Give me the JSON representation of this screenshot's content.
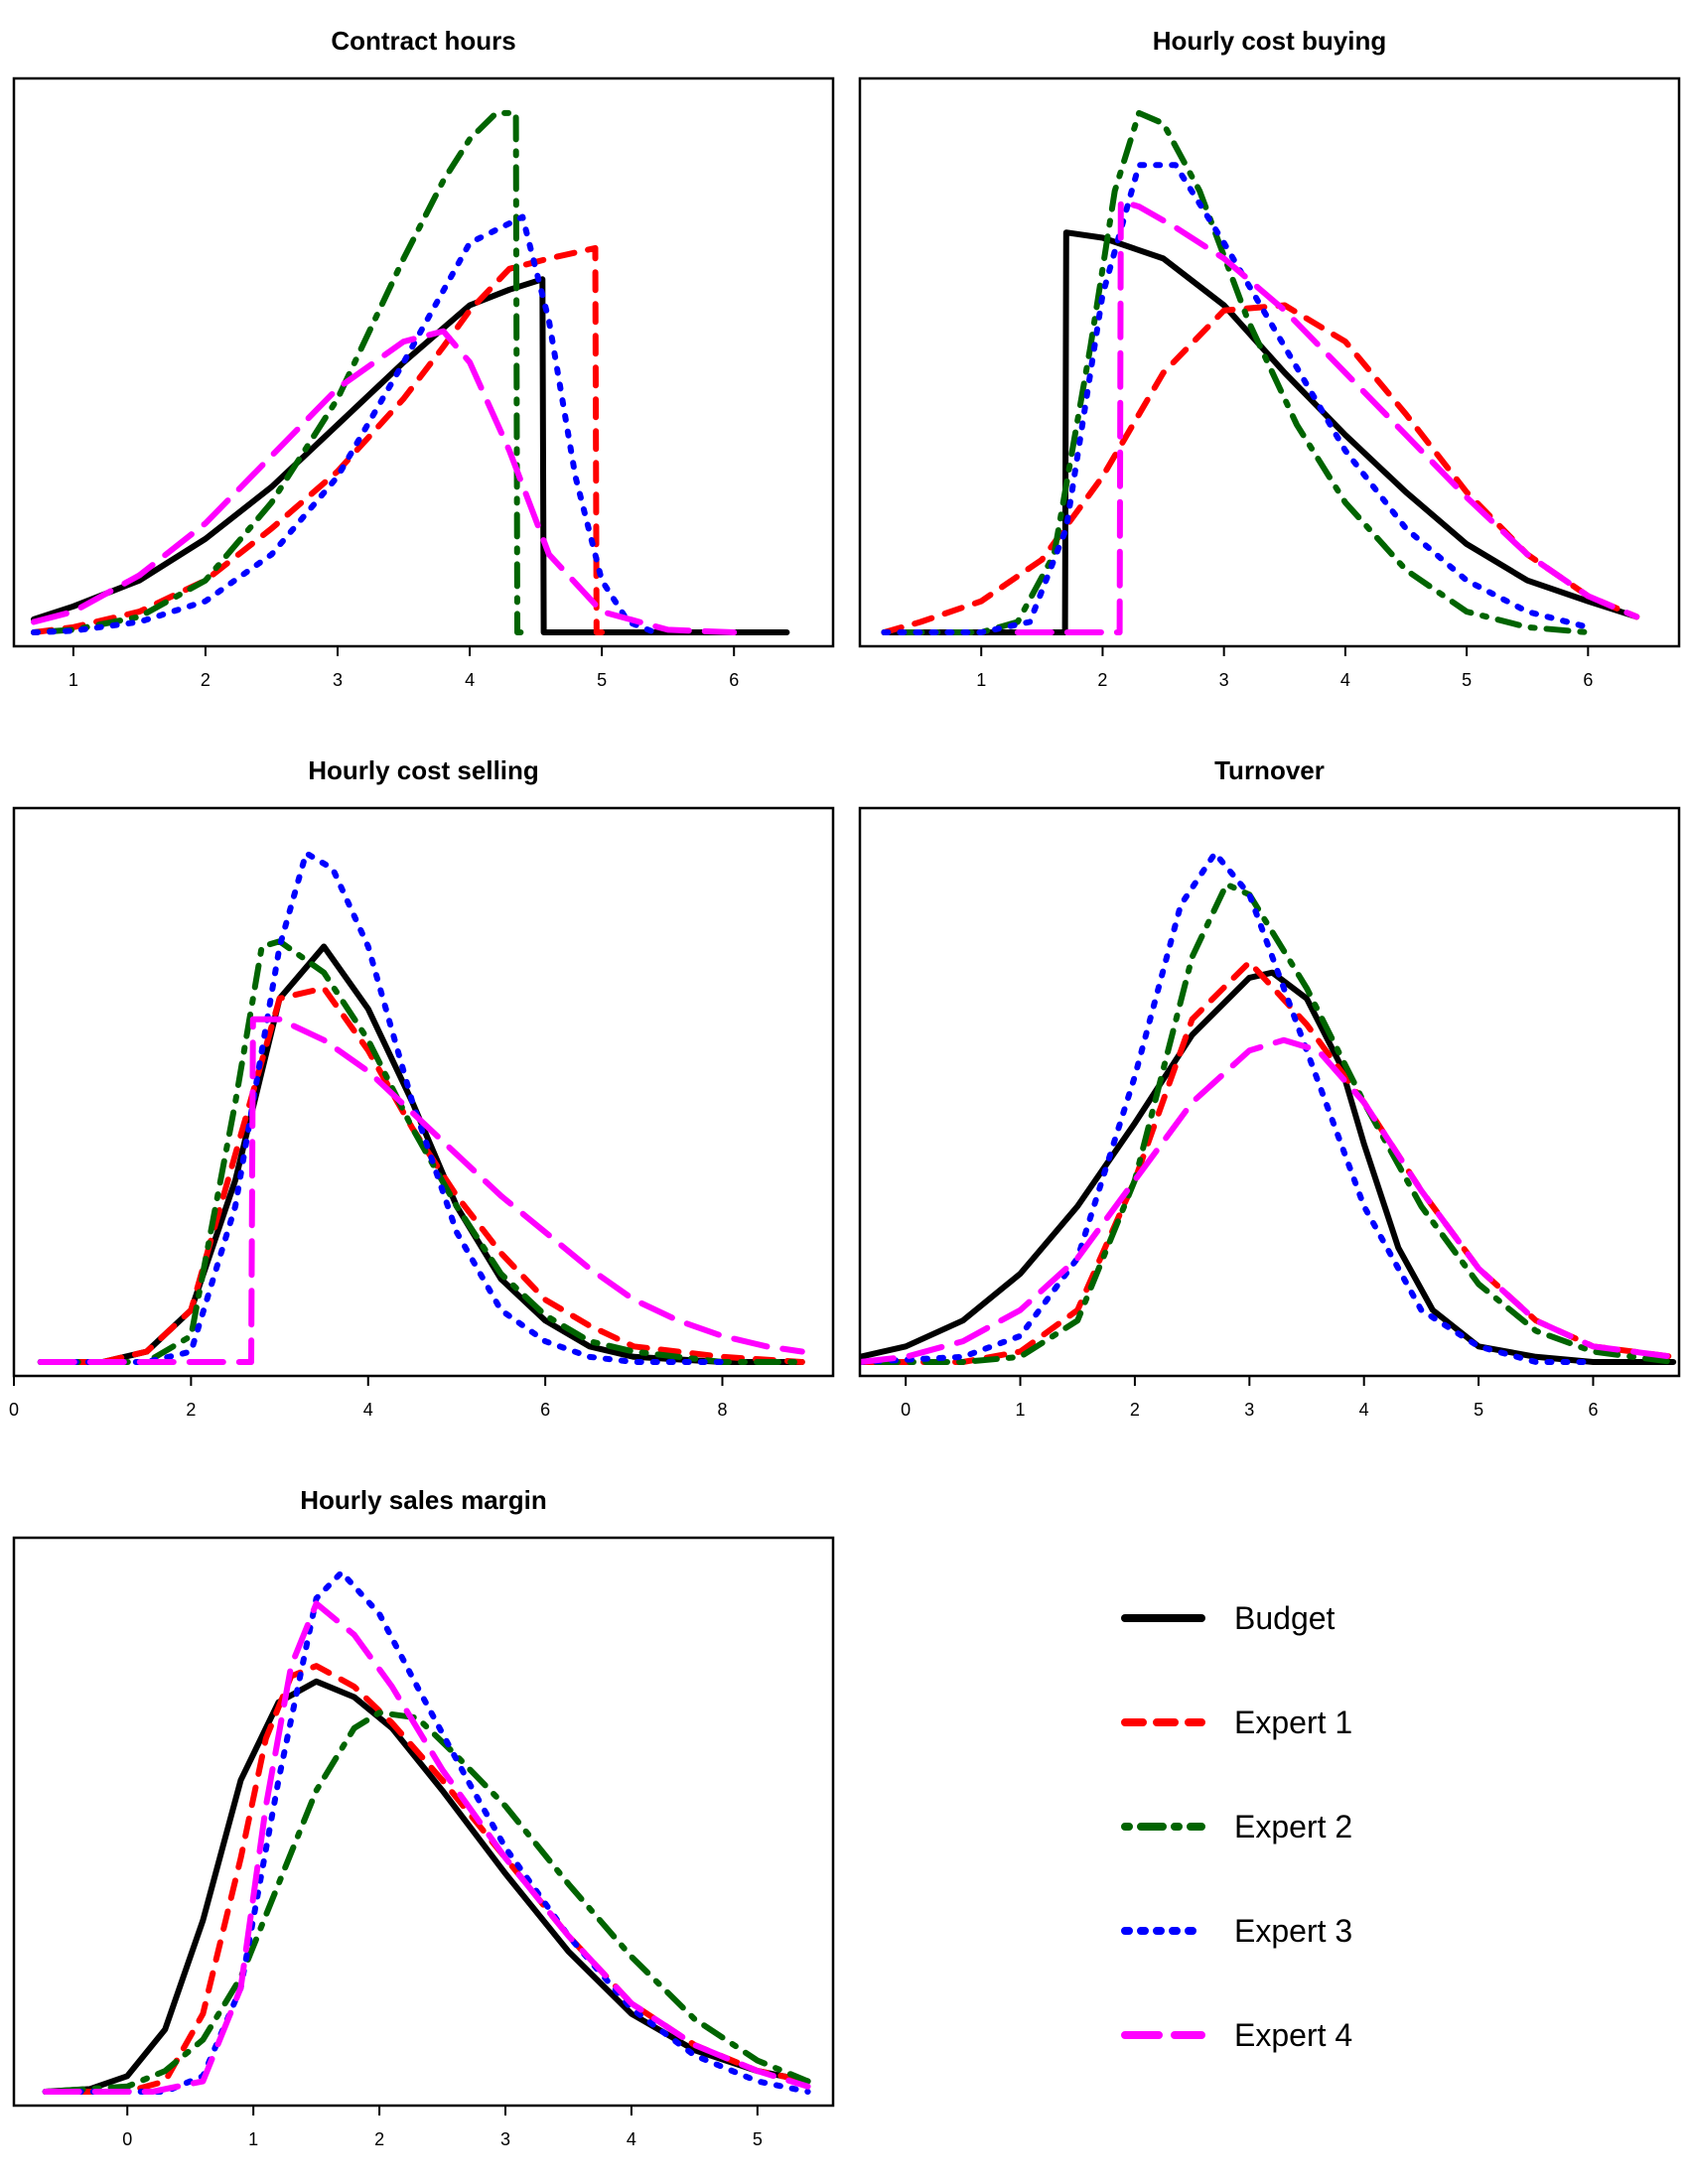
{
  "legend": [
    {
      "name": "Budget",
      "color": "#000000",
      "dash": "solid"
    },
    {
      "name": "Expert 1",
      "color": "#ff0000",
      "dash": "dashed"
    },
    {
      "name": "Expert 2",
      "color": "#006400",
      "dash": "dotdash"
    },
    {
      "name": "Expert 3",
      "color": "#0000ff",
      "dash": "dotted"
    },
    {
      "name": "Expert 4",
      "color": "#ff00ff",
      "dash": "longdash"
    }
  ],
  "chart_data": [
    {
      "type": "line",
      "title": "Contract hours",
      "xlabel": "",
      "ylabel": "",
      "xlim": [
        0.55,
        6.75
      ],
      "ylim": [
        0,
        1.04
      ],
      "xticks": [
        1,
        2,
        3,
        4,
        5,
        6
      ],
      "series": [
        {
          "name": "Budget",
          "x": [
            0.7,
            1.0,
            1.5,
            2.0,
            2.5,
            3.0,
            3.5,
            4.0,
            4.3,
            4.55,
            4.56,
            4.6,
            5.0,
            5.5,
            6.0,
            6.4
          ],
          "values": [
            0.025,
            0.05,
            0.1,
            0.18,
            0.28,
            0.4,
            0.52,
            0.63,
            0.66,
            0.68,
            0.0,
            0.0,
            0.0,
            0.0,
            0.0,
            0.0
          ]
        },
        {
          "name": "Expert 1",
          "x": [
            0.7,
            1.0,
            1.5,
            2.0,
            2.5,
            3.0,
            3.5,
            3.8,
            4.0,
            4.3,
            4.6,
            4.95,
            4.96,
            5.0
          ],
          "values": [
            0.0,
            0.01,
            0.04,
            0.1,
            0.2,
            0.31,
            0.45,
            0.55,
            0.62,
            0.7,
            0.72,
            0.74,
            0.0,
            0.0
          ]
        },
        {
          "name": "Expert 2",
          "x": [
            0.7,
            1.0,
            1.5,
            2.0,
            2.5,
            3.0,
            3.5,
            3.8,
            4.0,
            4.2,
            4.35,
            4.36,
            4.4
          ],
          "values": [
            0.0,
            0.005,
            0.03,
            0.1,
            0.25,
            0.45,
            0.72,
            0.87,
            0.95,
            1.0,
            1.0,
            0.0,
            0.0
          ]
        },
        {
          "name": "Expert 3",
          "x": [
            0.7,
            1.0,
            1.5,
            2.0,
            2.5,
            3.0,
            3.5,
            4.0,
            4.4,
            4.6,
            4.8,
            5.0,
            5.2,
            5.4
          ],
          "values": [
            0.0,
            0.003,
            0.02,
            0.06,
            0.15,
            0.3,
            0.52,
            0.75,
            0.8,
            0.6,
            0.3,
            0.1,
            0.02,
            0.0
          ]
        },
        {
          "name": "Expert 4",
          "x": [
            0.7,
            1.0,
            1.5,
            2.0,
            2.5,
            3.0,
            3.5,
            3.8,
            4.0,
            4.3,
            4.6,
            5.0,
            5.5,
            6.0
          ],
          "values": [
            0.02,
            0.04,
            0.11,
            0.21,
            0.34,
            0.47,
            0.56,
            0.58,
            0.52,
            0.35,
            0.15,
            0.04,
            0.005,
            0.0
          ]
        }
      ]
    },
    {
      "type": "line",
      "title": "Hourly cost buying",
      "xlabel": "",
      "ylabel": "",
      "xlim": [
        0.0,
        6.75
      ],
      "ylim": [
        0,
        1.04
      ],
      "xticks": [
        1,
        2,
        3,
        4,
        5,
        6
      ],
      "series": [
        {
          "name": "Budget",
          "x": [
            0.2,
            1.0,
            1.69,
            1.7,
            2.0,
            2.5,
            3.0,
            3.5,
            4.0,
            4.5,
            5.0,
            5.5,
            6.0,
            6.4
          ],
          "values": [
            0.0,
            0.0,
            0.0,
            0.77,
            0.76,
            0.72,
            0.63,
            0.5,
            0.38,
            0.27,
            0.17,
            0.1,
            0.06,
            0.03
          ]
        },
        {
          "name": "Expert 1",
          "x": [
            0.2,
            0.5,
            1.0,
            1.5,
            2.0,
            2.5,
            3.0,
            3.5,
            4.0,
            4.5,
            5.0,
            5.5,
            6.0,
            6.4
          ],
          "values": [
            0.0,
            0.02,
            0.06,
            0.14,
            0.3,
            0.5,
            0.62,
            0.63,
            0.56,
            0.42,
            0.27,
            0.15,
            0.07,
            0.03
          ]
        },
        {
          "name": "Expert 2",
          "x": [
            0.2,
            1.0,
            1.3,
            1.6,
            1.9,
            2.1,
            2.3,
            2.5,
            2.8,
            3.2,
            3.6,
            4.0,
            4.5,
            5.0,
            5.5,
            6.0
          ],
          "values": [
            0.0,
            0.0,
            0.02,
            0.15,
            0.55,
            0.85,
            1.0,
            0.98,
            0.85,
            0.6,
            0.4,
            0.25,
            0.12,
            0.04,
            0.01,
            0.0
          ]
        },
        {
          "name": "Expert 3",
          "x": [
            0.2,
            1.0,
            1.4,
            1.7,
            2.0,
            2.3,
            2.6,
            3.0,
            3.5,
            4.0,
            4.5,
            5.0,
            5.5,
            6.0
          ],
          "values": [
            0.0,
            0.0,
            0.02,
            0.2,
            0.65,
            0.9,
            0.9,
            0.75,
            0.55,
            0.35,
            0.2,
            0.1,
            0.04,
            0.01
          ]
        },
        {
          "name": "Expert 4",
          "x": [
            1.3,
            2.0,
            2.14,
            2.15,
            2.3,
            2.6,
            3.0,
            3.5,
            4.0,
            4.5,
            5.0,
            5.5,
            6.0,
            6.4
          ],
          "values": [
            0.0,
            0.0,
            0.0,
            0.83,
            0.82,
            0.78,
            0.72,
            0.62,
            0.5,
            0.38,
            0.26,
            0.15,
            0.07,
            0.03
          ]
        }
      ]
    },
    {
      "type": "line",
      "title": "Hourly cost selling",
      "xlabel": "",
      "ylabel": "",
      "xlim": [
        0.0,
        9.25
      ],
      "ylim": [
        0,
        1.04
      ],
      "xticks": [
        0,
        2,
        4,
        6,
        8
      ],
      "series": [
        {
          "name": "Budget",
          "x": [
            0.3,
            1.0,
            1.5,
            2.0,
            2.5,
            3.0,
            3.5,
            4.0,
            4.5,
            5.0,
            5.5,
            6.0,
            6.5,
            7.0,
            8.0,
            8.9
          ],
          "values": [
            0.0,
            0.0,
            0.02,
            0.1,
            0.35,
            0.7,
            0.8,
            0.68,
            0.5,
            0.3,
            0.16,
            0.08,
            0.03,
            0.01,
            0.0,
            0.0
          ]
        },
        {
          "name": "Expert 1",
          "x": [
            0.3,
            1.0,
            1.5,
            2.0,
            2.5,
            3.0,
            3.5,
            4.0,
            4.5,
            5.0,
            5.5,
            6.0,
            6.5,
            7.0,
            8.0,
            8.9
          ],
          "values": [
            0.0,
            0.0,
            0.02,
            0.1,
            0.4,
            0.7,
            0.72,
            0.6,
            0.45,
            0.32,
            0.21,
            0.12,
            0.07,
            0.03,
            0.01,
            0.0
          ]
        },
        {
          "name": "Expert 2",
          "x": [
            0.3,
            1.5,
            2.0,
            2.5,
            2.8,
            3.0,
            3.5,
            4.0,
            4.5,
            5.0,
            5.5,
            6.0,
            6.5,
            7.0,
            8.0,
            8.9
          ],
          "values": [
            0.0,
            0.0,
            0.05,
            0.5,
            0.8,
            0.81,
            0.75,
            0.62,
            0.45,
            0.3,
            0.17,
            0.09,
            0.04,
            0.02,
            0.0,
            0.0
          ]
        },
        {
          "name": "Expert 3",
          "x": [
            0.3,
            1.5,
            2.0,
            2.5,
            3.0,
            3.3,
            3.6,
            4.0,
            4.5,
            5.0,
            5.5,
            6.0,
            6.5,
            7.0,
            8.0
          ],
          "values": [
            0.0,
            0.0,
            0.02,
            0.3,
            0.8,
            0.98,
            0.95,
            0.8,
            0.5,
            0.25,
            0.1,
            0.04,
            0.01,
            0.0,
            0.0
          ]
        },
        {
          "name": "Expert 4",
          "x": [
            0.3,
            2.0,
            2.68,
            2.7,
            3.0,
            3.5,
            4.0,
            4.5,
            5.0,
            5.5,
            6.0,
            6.5,
            7.0,
            7.5,
            8.0,
            8.5,
            8.9
          ],
          "values": [
            0.0,
            0.0,
            0.0,
            0.66,
            0.66,
            0.62,
            0.56,
            0.48,
            0.4,
            0.32,
            0.25,
            0.18,
            0.12,
            0.08,
            0.05,
            0.03,
            0.02
          ]
        }
      ]
    },
    {
      "type": "line",
      "title": "Turnover",
      "xlabel": "",
      "ylabel": "",
      "xlim": [
        -0.4,
        6.75
      ],
      "ylim": [
        0,
        1.04
      ],
      "xticks": [
        0,
        1,
        2,
        3,
        4,
        5,
        6
      ],
      "series": [
        {
          "name": "Budget",
          "x": [
            -0.4,
            0.0,
            0.5,
            1.0,
            1.5,
            2.0,
            2.5,
            3.0,
            3.2,
            3.5,
            3.8,
            4.0,
            4.3,
            4.6,
            5.0,
            5.5,
            6.0,
            6.7
          ],
          "values": [
            0.01,
            0.03,
            0.08,
            0.17,
            0.3,
            0.46,
            0.63,
            0.74,
            0.75,
            0.7,
            0.57,
            0.42,
            0.22,
            0.1,
            0.03,
            0.01,
            0.0,
            0.0
          ]
        },
        {
          "name": "Expert 1",
          "x": [
            -0.4,
            0.5,
            1.0,
            1.5,
            2.0,
            2.5,
            3.0,
            3.5,
            4.0,
            4.5,
            5.0,
            5.5,
            6.0,
            6.7
          ],
          "values": [
            0.0,
            0.0,
            0.02,
            0.1,
            0.35,
            0.66,
            0.77,
            0.65,
            0.5,
            0.33,
            0.18,
            0.08,
            0.03,
            0.01
          ]
        },
        {
          "name": "Expert 2",
          "x": [
            -0.4,
            0.5,
            1.0,
            1.5,
            2.0,
            2.5,
            2.8,
            3.0,
            3.5,
            4.0,
            4.5,
            5.0,
            5.5,
            6.0,
            6.7
          ],
          "values": [
            0.0,
            0.0,
            0.01,
            0.08,
            0.35,
            0.78,
            0.92,
            0.9,
            0.72,
            0.5,
            0.3,
            0.15,
            0.06,
            0.02,
            0.0
          ]
        },
        {
          "name": "Expert 3",
          "x": [
            -0.4,
            0.5,
            1.0,
            1.5,
            2.0,
            2.4,
            2.7,
            3.0,
            3.5,
            4.0,
            4.5,
            5.0,
            5.5,
            6.0
          ],
          "values": [
            0.0,
            0.01,
            0.05,
            0.2,
            0.55,
            0.88,
            0.98,
            0.9,
            0.6,
            0.3,
            0.1,
            0.03,
            0.0,
            0.0
          ]
        },
        {
          "name": "Expert 4",
          "x": [
            -0.4,
            0.0,
            0.5,
            1.0,
            1.5,
            2.0,
            2.5,
            3.0,
            3.3,
            3.6,
            4.0,
            4.5,
            5.0,
            5.5,
            6.0,
            6.7
          ],
          "values": [
            0.0,
            0.01,
            0.04,
            0.1,
            0.2,
            0.35,
            0.5,
            0.6,
            0.62,
            0.6,
            0.5,
            0.33,
            0.18,
            0.08,
            0.03,
            0.01
          ]
        }
      ]
    },
    {
      "type": "line",
      "title": "Hourly sales margin",
      "xlabel": "",
      "ylabel": "",
      "xlim": [
        -0.9,
        5.6
      ],
      "ylim": [
        0,
        1.04
      ],
      "xticks": [
        0,
        1,
        2,
        3,
        4,
        5
      ],
      "series": [
        {
          "name": "Budget",
          "x": [
            -0.65,
            -0.3,
            0.0,
            0.3,
            0.6,
            0.9,
            1.2,
            1.5,
            1.8,
            2.1,
            2.5,
            3.0,
            3.5,
            4.0,
            4.5,
            5.0,
            5.4
          ],
          "values": [
            0.0,
            0.005,
            0.03,
            0.12,
            0.33,
            0.6,
            0.75,
            0.79,
            0.76,
            0.7,
            0.58,
            0.42,
            0.27,
            0.15,
            0.08,
            0.04,
            0.02
          ]
        },
        {
          "name": "Expert 1",
          "x": [
            -0.65,
            0.0,
            0.3,
            0.6,
            0.9,
            1.1,
            1.3,
            1.5,
            1.8,
            2.1,
            2.5,
            3.0,
            3.5,
            4.0,
            4.5,
            5.0,
            5.4
          ],
          "values": [
            0.0,
            0.0,
            0.02,
            0.15,
            0.45,
            0.68,
            0.8,
            0.82,
            0.78,
            0.71,
            0.6,
            0.45,
            0.3,
            0.17,
            0.09,
            0.04,
            0.02
          ]
        },
        {
          "name": "Expert 2",
          "x": [
            -0.65,
            0.0,
            0.3,
            0.6,
            0.9,
            1.2,
            1.5,
            1.8,
            2.0,
            2.3,
            2.6,
            3.0,
            3.5,
            4.0,
            4.5,
            5.0,
            5.4
          ],
          "values": [
            0.0,
            0.01,
            0.04,
            0.1,
            0.22,
            0.4,
            0.58,
            0.7,
            0.73,
            0.72,
            0.65,
            0.55,
            0.4,
            0.26,
            0.14,
            0.06,
            0.02
          ]
        },
        {
          "name": "Expert 3",
          "x": [
            -0.65,
            0.3,
            0.6,
            0.9,
            1.2,
            1.5,
            1.7,
            2.0,
            2.3,
            2.7,
            3.0,
            3.5,
            4.0,
            4.5,
            5.0,
            5.4
          ],
          "values": [
            0.0,
            0.0,
            0.03,
            0.2,
            0.6,
            0.95,
            1.0,
            0.92,
            0.78,
            0.6,
            0.47,
            0.3,
            0.16,
            0.07,
            0.02,
            0.0
          ]
        },
        {
          "name": "Expert 4",
          "x": [
            -0.65,
            0.2,
            0.6,
            0.9,
            1.1,
            1.3,
            1.5,
            1.8,
            2.1,
            2.5,
            3.0,
            3.5,
            4.0,
            4.5,
            5.0,
            5.4
          ],
          "values": [
            0.0,
            0.0,
            0.02,
            0.2,
            0.55,
            0.82,
            0.94,
            0.88,
            0.78,
            0.62,
            0.45,
            0.3,
            0.17,
            0.09,
            0.04,
            0.01
          ]
        }
      ]
    }
  ]
}
